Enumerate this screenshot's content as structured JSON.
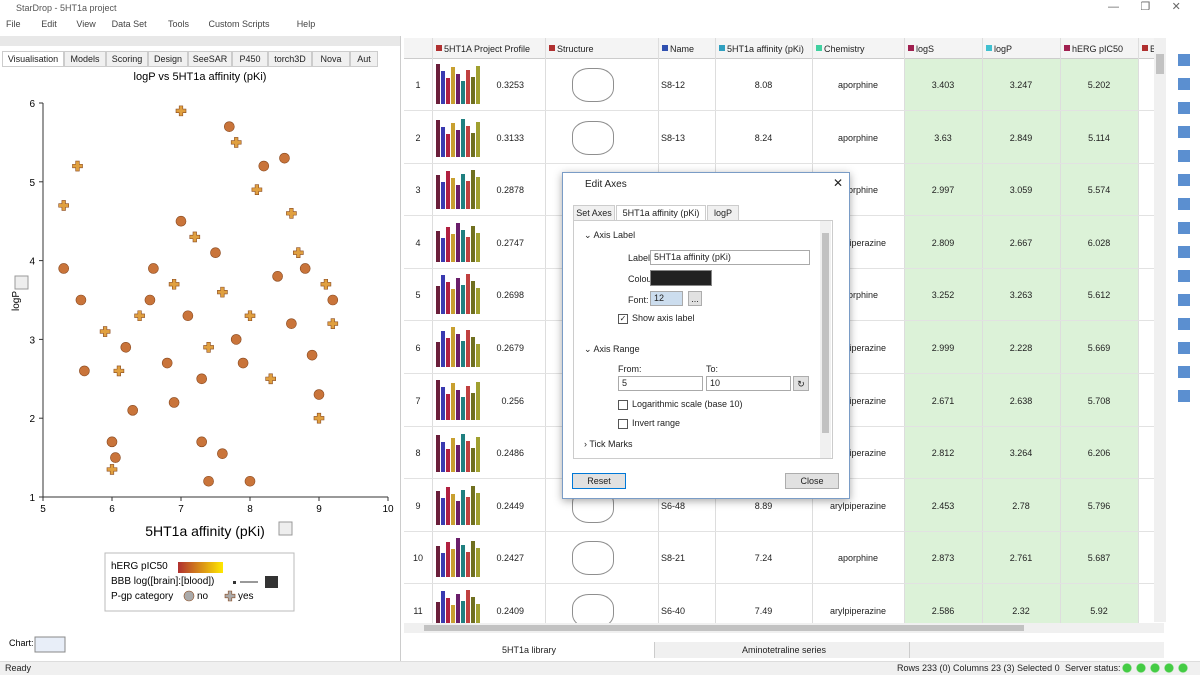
{
  "window": {
    "title": "StarDrop - 5HT1a project"
  },
  "menu": [
    "File",
    "Edit",
    "View",
    "Data Set",
    "Tools",
    "Custom Scripts",
    "Help"
  ],
  "left_tabs": [
    "Visualisation",
    "Models",
    "Scoring",
    "Design",
    "SeeSAR",
    "P450",
    "torch3D",
    "Nova",
    "Aut"
  ],
  "chart_data": {
    "type": "scatter",
    "title": "logP vs 5HT1a affinity (pKi)",
    "x_label": "5HT1a affinity (pKi)",
    "y_label": "logP",
    "xlim": [
      5,
      10
    ],
    "ylim": [
      1,
      6
    ],
    "xticks": [
      5,
      6,
      7,
      8,
      9,
      10
    ],
    "yticks": [
      1,
      2,
      3,
      4,
      5,
      6
    ],
    "series": [
      {
        "name": "no",
        "color": "#c9743a",
        "x": [
          5.3,
          5.55,
          6.55,
          6.3,
          6.0,
          6.05,
          7.3,
          7.6,
          8.0,
          7.4,
          7.7,
          8.2,
          8.5,
          6.6,
          7.0,
          7.5,
          8.6,
          8.9,
          9.0,
          6.8,
          7.1,
          7.8,
          8.4,
          6.2,
          5.6,
          9.2,
          8.8,
          7.3,
          6.9,
          7.9
        ],
        "values": [
          3.9,
          3.5,
          3.5,
          2.1,
          1.7,
          1.5,
          1.7,
          1.55,
          1.2,
          1.2,
          5.7,
          5.2,
          5.3,
          3.9,
          4.5,
          4.1,
          3.2,
          2.8,
          2.3,
          2.7,
          3.3,
          3.0,
          3.8,
          2.9,
          2.6,
          3.5,
          3.9,
          2.5,
          2.2,
          2.7
        ]
      },
      {
        "name": "yes",
        "color": "#e0a040",
        "x": [
          5.5,
          5.3,
          7.0,
          6.0,
          7.8,
          8.1,
          8.7,
          9.1,
          6.4,
          7.6,
          8.3,
          9.2,
          6.9,
          7.4,
          8.6,
          9.0,
          6.1,
          7.2,
          8.0,
          5.9
        ],
        "values": [
          5.2,
          4.7,
          5.9,
          1.35,
          5.5,
          4.9,
          4.1,
          3.7,
          3.3,
          3.6,
          2.5,
          3.2,
          3.7,
          2.9,
          4.6,
          2.0,
          2.6,
          4.3,
          3.3,
          3.1
        ]
      }
    ]
  },
  "legend": {
    "color_title": "hERG pIC50",
    "size_title": "BBB log([brain]:[blood])",
    "shape_title": "P-gp category"
  },
  "chart_label": "Chart:",
  "table": {
    "columns": [
      "5HT1A Project Profile",
      "Structure",
      "Name",
      "5HT1a affinity (pKi)",
      "Chemistry",
      "logS",
      "logP",
      "hERG pIC50",
      "B"
    ],
    "rows": [
      [
        1,
        0.3253,
        "S8-12",
        8.08,
        "aporphine",
        3.403,
        3.247,
        5.202
      ],
      [
        2,
        0.3133,
        "S8-13",
        8.24,
        "aporphine",
        3.63,
        2.849,
        5.114
      ],
      [
        3,
        0.2878,
        null,
        null,
        "aporphine",
        2.997,
        3.059,
        5.574
      ],
      [
        4,
        0.2747,
        null,
        null,
        "arylpiperazine",
        2.809,
        2.667,
        6.028
      ],
      [
        5,
        0.2698,
        null,
        null,
        "aporphine",
        3.252,
        3.263,
        5.612
      ],
      [
        6,
        0.2679,
        null,
        null,
        "arylpiperazine",
        2.999,
        2.228,
        5.669
      ],
      [
        7,
        0.256,
        null,
        null,
        "arylpiperazine",
        2.671,
        2.638,
        5.708
      ],
      [
        8,
        0.2486,
        null,
        null,
        "arylpiperazine",
        2.812,
        3.264,
        6.206
      ],
      [
        9,
        0.2449,
        "S6-48",
        8.89,
        "arylpiperazine",
        2.453,
        2.78,
        5.796
      ],
      [
        10,
        0.2427,
        "S8-21",
        7.24,
        "aporphine",
        2.873,
        2.761,
        5.687
      ],
      [
        11,
        0.2409,
        "S6-40",
        7.49,
        "arylpiperazine",
        2.586,
        2.32,
        5.92
      ]
    ]
  },
  "dialog": {
    "title": "Edit Axes",
    "tabs": [
      "Set Axes",
      "5HT1a affinity (pKi)",
      "logP"
    ],
    "section_label": "Axis Label",
    "label_field": "Label:",
    "label_value": "5HT1a affinity (pKi)",
    "colour_field": "Colour:",
    "font_field": "Font:",
    "font_value": "12",
    "show_label": "Show axis label",
    "section_range": "Axis Range",
    "from_field": "From:",
    "from_value": "5",
    "to_field": "To:",
    "to_value": "10",
    "log_scale": "Logarithmic scale (base 10)",
    "invert": "Invert range",
    "tick_marks": "Tick Marks",
    "reset": "Reset",
    "close": "Close"
  },
  "bottom_tabs": [
    "5HT1a library",
    "Aminotetraline series"
  ],
  "status": {
    "left": "Ready",
    "counts": "Rows 233 (0) Columns 23 (3) Selected 0",
    "server": "Server status:"
  }
}
